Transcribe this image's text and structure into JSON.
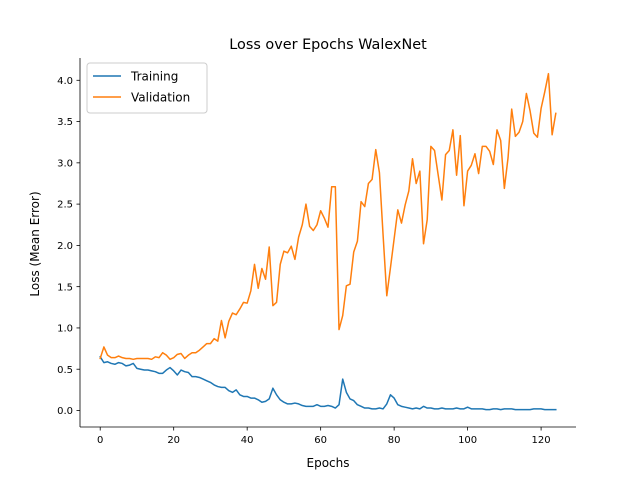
{
  "chart_data": {
    "type": "line",
    "title": "Loss over Epochs WalexNet",
    "xlabel": "Epochs",
    "ylabel": "Loss (Mean Error)",
    "xlim": [
      -5.5,
      129.5
    ],
    "ylim": [
      -0.2,
      4.27
    ],
    "xticks": [
      0,
      20,
      40,
      60,
      80,
      100,
      120
    ],
    "xtick_labels": [
      "0",
      "20",
      "40",
      "60",
      "80",
      "100",
      "120"
    ],
    "yticks": [
      0.0,
      0.5,
      1.0,
      1.5,
      2.0,
      2.5,
      3.0,
      3.5,
      4.0
    ],
    "ytick_labels": [
      "0.0",
      "0.5",
      "1.0",
      "1.5",
      "2.0",
      "2.5",
      "3.0",
      "3.5",
      "4.0"
    ],
    "grid": false,
    "legend_position": "upper-left",
    "series": [
      {
        "name": "Training",
        "color": "#1f77b4",
        "x": [
          0,
          1,
          2,
          3,
          4,
          5,
          6,
          7,
          8,
          9,
          10,
          11,
          12,
          13,
          14,
          15,
          16,
          17,
          18,
          19,
          20,
          21,
          22,
          23,
          24,
          25,
          26,
          27,
          28,
          29,
          30,
          31,
          32,
          33,
          34,
          35,
          36,
          37,
          38,
          39,
          40,
          41,
          42,
          43,
          44,
          45,
          46,
          47,
          48,
          49,
          50,
          51,
          52,
          53,
          54,
          55,
          56,
          57,
          58,
          59,
          60,
          61,
          62,
          63,
          64,
          65,
          66,
          67,
          68,
          69,
          70,
          71,
          72,
          73,
          74,
          75,
          76,
          77,
          78,
          79,
          80,
          81,
          82,
          83,
          84,
          85,
          86,
          87,
          88,
          89,
          90,
          91,
          92,
          93,
          94,
          95,
          96,
          97,
          98,
          99,
          100,
          101,
          102,
          103,
          104,
          105,
          106,
          107,
          108,
          109,
          110,
          111,
          112,
          113,
          114,
          115,
          116,
          117,
          118,
          119,
          120,
          121,
          122,
          123,
          124
        ],
        "values": [
          0.65,
          0.58,
          0.59,
          0.57,
          0.56,
          0.58,
          0.57,
          0.54,
          0.55,
          0.57,
          0.51,
          0.5,
          0.49,
          0.49,
          0.48,
          0.47,
          0.45,
          0.45,
          0.49,
          0.52,
          0.48,
          0.43,
          0.49,
          0.47,
          0.46,
          0.41,
          0.41,
          0.4,
          0.38,
          0.36,
          0.34,
          0.31,
          0.29,
          0.28,
          0.28,
          0.24,
          0.22,
          0.25,
          0.19,
          0.17,
          0.17,
          0.15,
          0.15,
          0.13,
          0.1,
          0.11,
          0.14,
          0.27,
          0.19,
          0.13,
          0.1,
          0.08,
          0.08,
          0.09,
          0.08,
          0.06,
          0.05,
          0.05,
          0.05,
          0.07,
          0.05,
          0.05,
          0.06,
          0.05,
          0.03,
          0.07,
          0.38,
          0.22,
          0.14,
          0.12,
          0.07,
          0.05,
          0.03,
          0.03,
          0.02,
          0.02,
          0.03,
          0.02,
          0.08,
          0.19,
          0.15,
          0.07,
          0.05,
          0.04,
          0.03,
          0.02,
          0.03,
          0.02,
          0.05,
          0.03,
          0.03,
          0.02,
          0.02,
          0.03,
          0.02,
          0.02,
          0.02,
          0.03,
          0.02,
          0.02,
          0.04,
          0.02,
          0.02,
          0.02,
          0.02,
          0.01,
          0.01,
          0.02,
          0.02,
          0.01,
          0.02,
          0.02,
          0.02,
          0.01,
          0.01,
          0.01,
          0.01,
          0.01,
          0.02,
          0.02,
          0.02,
          0.01,
          0.01,
          0.01,
          0.01
        ]
      },
      {
        "name": "Validation",
        "color": "#ff7f0e",
        "x": [
          0,
          1,
          2,
          3,
          4,
          5,
          6,
          7,
          8,
          9,
          10,
          11,
          12,
          13,
          14,
          15,
          16,
          17,
          18,
          19,
          20,
          21,
          22,
          23,
          24,
          25,
          26,
          27,
          28,
          29,
          30,
          31,
          32,
          33,
          34,
          35,
          36,
          37,
          38,
          39,
          40,
          41,
          42,
          43,
          44,
          45,
          46,
          47,
          48,
          49,
          50,
          51,
          52,
          53,
          54,
          55,
          56,
          57,
          58,
          59,
          60,
          61,
          62,
          63,
          64,
          65,
          66,
          67,
          68,
          69,
          70,
          71,
          72,
          73,
          74,
          75,
          76,
          77,
          78,
          79,
          80,
          81,
          82,
          83,
          84,
          85,
          86,
          87,
          88,
          89,
          90,
          91,
          92,
          93,
          94,
          95,
          96,
          97,
          98,
          99,
          100,
          101,
          102,
          103,
          104,
          105,
          106,
          107,
          108,
          109,
          110,
          111,
          112,
          113,
          114,
          115,
          116,
          117,
          118,
          119,
          120,
          121,
          122,
          123,
          124
        ],
        "values": [
          0.63,
          0.77,
          0.67,
          0.64,
          0.64,
          0.66,
          0.64,
          0.63,
          0.63,
          0.62,
          0.63,
          0.63,
          0.63,
          0.63,
          0.62,
          0.65,
          0.64,
          0.7,
          0.67,
          0.62,
          0.64,
          0.68,
          0.69,
          0.63,
          0.67,
          0.7,
          0.7,
          0.73,
          0.77,
          0.81,
          0.81,
          0.87,
          0.84,
          1.09,
          0.88,
          1.08,
          1.18,
          1.16,
          1.23,
          1.31,
          1.3,
          1.45,
          1.77,
          1.48,
          1.72,
          1.59,
          1.98,
          1.27,
          1.31,
          1.77,
          1.93,
          1.91,
          1.99,
          1.83,
          2.1,
          2.25,
          2.5,
          2.23,
          2.18,
          2.25,
          2.42,
          2.33,
          2.22,
          2.71,
          2.71,
          0.98,
          1.15,
          1.51,
          1.53,
          1.92,
          2.05,
          2.53,
          2.47,
          2.75,
          2.8,
          3.16,
          2.88,
          2.12,
          1.39,
          1.73,
          2.08,
          2.43,
          2.27,
          2.49,
          2.66,
          3.05,
          2.75,
          2.9,
          2.02,
          2.31,
          3.2,
          3.15,
          2.85,
          2.55,
          3.1,
          3.15,
          3.4,
          2.85,
          3.33,
          2.48,
          2.9,
          2.97,
          3.11,
          2.87,
          3.2,
          3.2,
          3.14,
          2.98,
          3.4,
          3.27,
          2.69,
          3.06,
          3.65,
          3.32,
          3.37,
          3.5,
          3.84,
          3.63,
          3.36,
          3.31,
          3.66,
          3.86,
          4.08,
          3.34,
          3.6
        ]
      }
    ]
  }
}
